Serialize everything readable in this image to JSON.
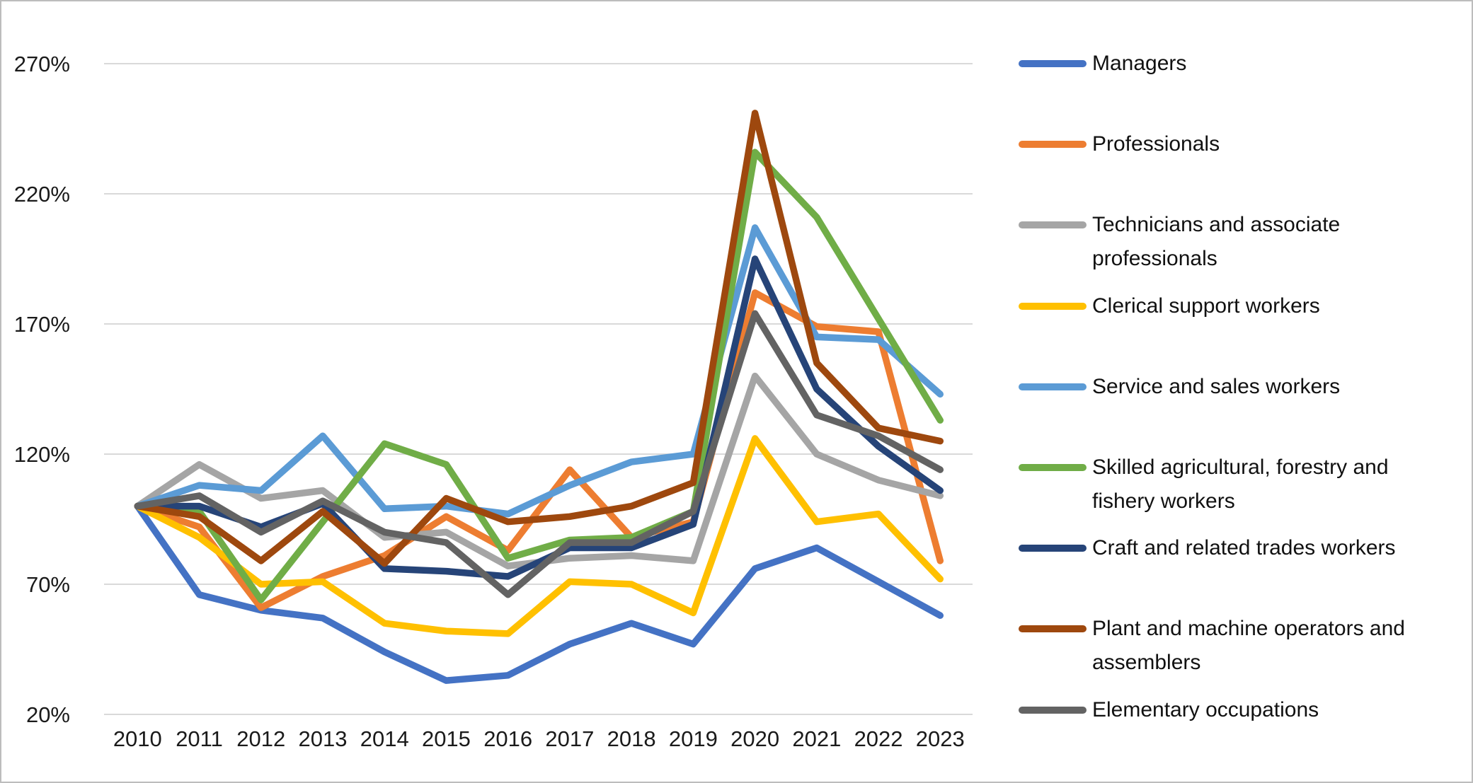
{
  "chart_data": {
    "type": "line",
    "title": "",
    "xlabel": "",
    "ylabel": "",
    "grid": true,
    "legend_position": "right",
    "x": [
      "2010",
      "2011",
      "2012",
      "2013",
      "2014",
      "2015",
      "2016",
      "2017",
      "2018",
      "2019",
      "2020",
      "2021",
      "2022",
      "2023"
    ],
    "y_axis": {
      "min": 20,
      "max": 270,
      "step": 50,
      "suffix": "%"
    },
    "series": [
      {
        "name": "Managers",
        "color": "#4472C4",
        "values": [
          100,
          66,
          60,
          57,
          44,
          33,
          35,
          47,
          55,
          47,
          76,
          84,
          71,
          58
        ]
      },
      {
        "name": "Professionals",
        "color": "#ED7D31",
        "values": [
          100,
          92,
          61,
          73,
          81,
          96,
          83,
          114,
          88,
          94,
          182,
          169,
          167,
          79
        ]
      },
      {
        "name": "Technicians and associate professionals",
        "color": "#A5A5A5",
        "values": [
          100,
          116,
          103,
          106,
          88,
          90,
          77,
          80,
          81,
          79,
          150,
          120,
          110,
          104
        ]
      },
      {
        "name": "Clerical support workers",
        "color": "#FFC000",
        "values": [
          100,
          88,
          70,
          71,
          55,
          52,
          51,
          71,
          70,
          59,
          126,
          94,
          97,
          72
        ]
      },
      {
        "name": "Service and sales workers",
        "color": "#5B9BD5",
        "values": [
          100,
          108,
          106,
          127,
          99,
          100,
          97,
          108,
          117,
          120,
          207,
          165,
          164,
          143
        ]
      },
      {
        "name": "Skilled agricultural, forestry and fishery workers",
        "color": "#70AD47",
        "values": [
          100,
          98,
          64,
          94,
          124,
          116,
          80,
          87,
          88,
          98,
          236,
          211,
          172,
          133
        ]
      },
      {
        "name": "Craft and related trades workers",
        "color": "#264478",
        "values": [
          100,
          100,
          92,
          101,
          76,
          75,
          73,
          84,
          84,
          93,
          195,
          145,
          123,
          106
        ]
      },
      {
        "name": "Plant and machine operators and assemblers",
        "color": "#9E480E",
        "values": [
          100,
          96,
          79,
          98,
          78,
          103,
          94,
          96,
          100,
          109,
          251,
          155,
          130,
          125
        ]
      },
      {
        "name": "Elementary occupations",
        "color": "#636363",
        "values": [
          100,
          104,
          90,
          102,
          90,
          86,
          66,
          86,
          86,
          98,
          174,
          135,
          127,
          114
        ]
      }
    ]
  },
  "legend": {
    "items": [
      {
        "lines": [
          "Managers"
        ]
      },
      {
        "lines": [
          "Professionals"
        ]
      },
      {
        "lines": [
          "Technicians and associate",
          "professionals"
        ]
      },
      {
        "lines": [
          "Clerical support workers"
        ]
      },
      {
        "lines": [
          "Service and sales workers"
        ]
      },
      {
        "lines": [
          "Skilled agricultural, forestry and",
          "fishery workers"
        ]
      },
      {
        "lines": [
          "Craft and related trades workers"
        ]
      },
      {
        "lines": [
          "Plant and machine operators and",
          "assemblers"
        ]
      },
      {
        "lines": [
          "Elementary occupations"
        ]
      }
    ]
  }
}
